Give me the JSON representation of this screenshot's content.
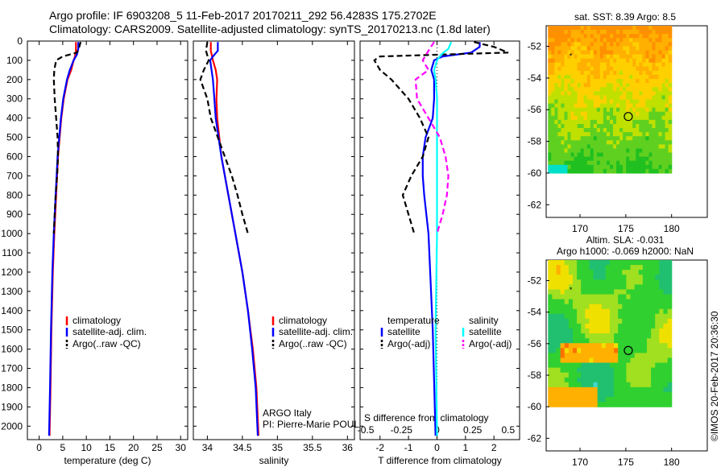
{
  "title_line1": "Argo profile: IF 6903208_5 11-Feb-2017 20170211_292 56.4283S 175.2702E",
  "title_line2": "Climatology: CARS2009. Satellite-adjusted climatology: synTS_20170213.nc (1.8d later)",
  "colors": {
    "climatology": "#ff0000",
    "satellite": "#0000ff",
    "argo": "#000000",
    "sal_satellite": "#00ffff",
    "sal_argo": "#ff00ff"
  },
  "chart_data": [
    {
      "type": "line",
      "xlabel": "temperature (deg C)",
      "ylabel": "",
      "xlim": [
        -2.5,
        31.5
      ],
      "ylim": [
        2070,
        0
      ],
      "xticks": [
        0,
        5,
        10,
        15,
        20,
        25,
        30
      ],
      "yticks": [
        0,
        100,
        200,
        300,
        400,
        500,
        600,
        700,
        800,
        900,
        1000,
        1100,
        1200,
        1300,
        1400,
        1500,
        1600,
        1700,
        1800,
        1900,
        2000
      ],
      "legend": [
        "climatology",
        "satellite-adj. clim.",
        "Argo(..raw -QC)"
      ],
      "legend_position": "lower-middle",
      "series": [
        {
          "name": "climatology",
          "style": "solid",
          "depth": [
            5,
            50,
            80,
            100,
            150,
            200,
            300,
            400,
            600,
            800,
            1000,
            1200,
            1500,
            1800,
            2050
          ],
          "values": [
            7.8,
            7.8,
            7.6,
            7.3,
            6.8,
            6.0,
            5.2,
            4.7,
            4.0,
            3.6,
            3.2,
            2.9,
            2.6,
            2.4,
            2.2
          ]
        },
        {
          "name": "satellite-adj. clim.",
          "style": "solid",
          "depth": [
            5,
            40,
            70,
            100,
            150,
            200,
            300,
            400,
            600,
            800,
            1000,
            1200,
            1500,
            1800,
            2050
          ],
          "values": [
            8.3,
            8.3,
            8.0,
            7.3,
            6.5,
            5.9,
            5.1,
            4.6,
            3.9,
            3.5,
            3.1,
            2.8,
            2.5,
            2.3,
            2.1
          ]
        },
        {
          "name": "Argo(..raw -QC)",
          "style": "dashed",
          "depth": [
            5,
            30,
            60,
            80,
            100,
            150,
            200,
            300,
            400,
            500,
            600,
            700,
            800,
            900,
            1000
          ],
          "values": [
            8.8,
            8.5,
            8.0,
            5.0,
            3.6,
            3.2,
            3.1,
            3.3,
            3.6,
            3.9,
            4.0,
            3.8,
            3.5,
            3.3,
            3.1
          ]
        }
      ]
    },
    {
      "type": "line",
      "xlabel": "salinity",
      "xlim": [
        33.8,
        36.1
      ],
      "ylim": [
        2070,
        0
      ],
      "xticks": [
        34,
        34.5,
        35,
        35.5,
        36
      ],
      "legend": [
        "climatology",
        "satellite-adj. clim.",
        "Argo(..raw -QC)"
      ],
      "annotations": [
        "ARGO Italy",
        "PI: Pierre-Marie POULAIN"
      ],
      "series": [
        {
          "name": "climatology",
          "style": "solid",
          "depth": [
            5,
            50,
            100,
            150,
            200,
            300,
            400,
            600,
            800,
            1000,
            1200,
            1400,
            1600,
            1800,
            2050
          ],
          "values": [
            34.05,
            34.05,
            34.08,
            34.12,
            34.14,
            34.13,
            34.14,
            34.2,
            34.3,
            34.4,
            34.5,
            34.58,
            34.65,
            34.7,
            34.73
          ]
        },
        {
          "name": "satellite-adj. clim.",
          "style": "solid",
          "depth": [
            5,
            50,
            80,
            100,
            150,
            200,
            300,
            400,
            600,
            800,
            1000,
            1200,
            1400,
            1600,
            1800,
            2050
          ],
          "values": [
            34.15,
            34.15,
            34.08,
            34.04,
            34.06,
            34.08,
            34.1,
            34.12,
            34.2,
            34.3,
            34.4,
            34.5,
            34.58,
            34.64,
            34.69,
            34.72
          ]
        },
        {
          "name": "Argo(..raw -QC)",
          "style": "dashed",
          "depth": [
            5,
            50,
            100,
            150,
            200,
            300,
            400,
            450,
            500,
            600,
            700,
            800,
            900,
            1000
          ],
          "values": [
            34.0,
            33.98,
            34.02,
            33.95,
            33.9,
            34.0,
            34.05,
            34.1,
            34.15,
            34.25,
            34.35,
            34.43,
            34.5,
            34.58
          ]
        }
      ]
    },
    {
      "type": "line",
      "xlabel": "T difference from climatology",
      "top_axis_label": "S difference from climatology",
      "xlim": [
        -2.7,
        2.9
      ],
      "ylim": [
        2070,
        0
      ],
      "xticks": [
        -2,
        -1,
        0,
        1,
        2
      ],
      "top_ticks": [
        -0.5,
        -0.25,
        0,
        0.25,
        0.5
      ],
      "top_tick_labels": [
        "-0.5",
        "-0.25",
        "0",
        "0.25",
        "0.5"
      ],
      "top_xlim": [
        -0.54,
        0.58
      ],
      "legend_temperature_heading": "temperature",
      "legend_salinity_heading": "salinity",
      "legend": [
        "satellite",
        "Argo(-adj)",
        "satellite",
        "Argo(-adj)"
      ],
      "series": [
        {
          "name": "temperature satellite",
          "axis": "T",
          "style": "solid",
          "depth": [
            5,
            30,
            60,
            80,
            100,
            150,
            200,
            300,
            400,
            500,
            600,
            700,
            800,
            1000,
            1500,
            2050
          ],
          "values": [
            1.5,
            1.5,
            1.2,
            0.2,
            -0.1,
            -0.2,
            -0.1,
            -0.1,
            -0.15,
            -0.4,
            -0.5,
            -0.5,
            -0.45,
            -0.3,
            -0.15,
            -0.05
          ]
        },
        {
          "name": "temperature Argo(-adj)",
          "axis": "T",
          "style": "dashed",
          "depth": [
            5,
            30,
            60,
            80,
            100,
            150,
            200,
            300,
            400,
            500,
            600,
            700,
            800,
            900,
            1000
          ],
          "values": [
            1.3,
            2.0,
            2.5,
            -2.0,
            -2.2,
            -2.0,
            -1.6,
            -1.0,
            -0.6,
            -0.3,
            -0.5,
            -0.9,
            -1.2,
            -1.0,
            -0.8
          ]
        },
        {
          "name": "salinity satellite",
          "axis": "S",
          "style": "solid",
          "depth": [
            5,
            40,
            70,
            100,
            150,
            200,
            300,
            400,
            600,
            800,
            1000,
            1500,
            2050
          ],
          "values": [
            0.1,
            0.08,
            0.03,
            0.0,
            -0.02,
            -0.01,
            0.0,
            0.0,
            0.0,
            0.0,
            0.0,
            -0.01,
            0.0
          ]
        },
        {
          "name": "salinity Argo(-adj)",
          "axis": "S",
          "style": "dashed",
          "depth": [
            5,
            50,
            100,
            150,
            200,
            300,
            400,
            500,
            600,
            700,
            800,
            900,
            1000
          ],
          "values": [
            -0.02,
            -0.06,
            -0.1,
            -0.06,
            -0.15,
            -0.14,
            -0.06,
            0.02,
            0.06,
            0.08,
            0.07,
            0.04,
            0.0
          ]
        }
      ]
    },
    {
      "type": "heatmap",
      "title": "sat. SST: 8.39 Argo: 8.5",
      "xlim": [
        166.3,
        183.9
      ],
      "ylim": [
        -62.8,
        -50.7
      ],
      "xticks": [
        170,
        175,
        180
      ],
      "yticks": [
        -52,
        -54,
        -56,
        -58,
        -60,
        -62
      ],
      "data_lon_range": [
        166.5,
        180
      ],
      "data_lat_range": [
        -60,
        -50.7
      ],
      "float_position": {
        "lon": 175.27,
        "lat": -56.43
      },
      "star": {
        "lon": 169,
        "lat": -52.6
      }
    },
    {
      "type": "heatmap",
      "title": "Altim. SLA: -0.031",
      "subtitle": "Argo h1000: -0.069 h2000: NaN",
      "xlim": [
        166.3,
        183.9
      ],
      "ylim": [
        -62.8,
        -50.7
      ],
      "xticks": [
        170,
        175,
        180
      ],
      "yticks": [
        -52,
        -54,
        -56,
        -58,
        -60,
        -62
      ],
      "data_lon_range": [
        166.5,
        180
      ],
      "data_lat_range": [
        -60,
        -50.7
      ],
      "float_position": {
        "lon": 175.27,
        "lat": -56.43
      },
      "star": {
        "lon": 169,
        "lat": -52.6
      }
    }
  ],
  "credit": "©IMOS 20-Feb-2017 20:36:30"
}
